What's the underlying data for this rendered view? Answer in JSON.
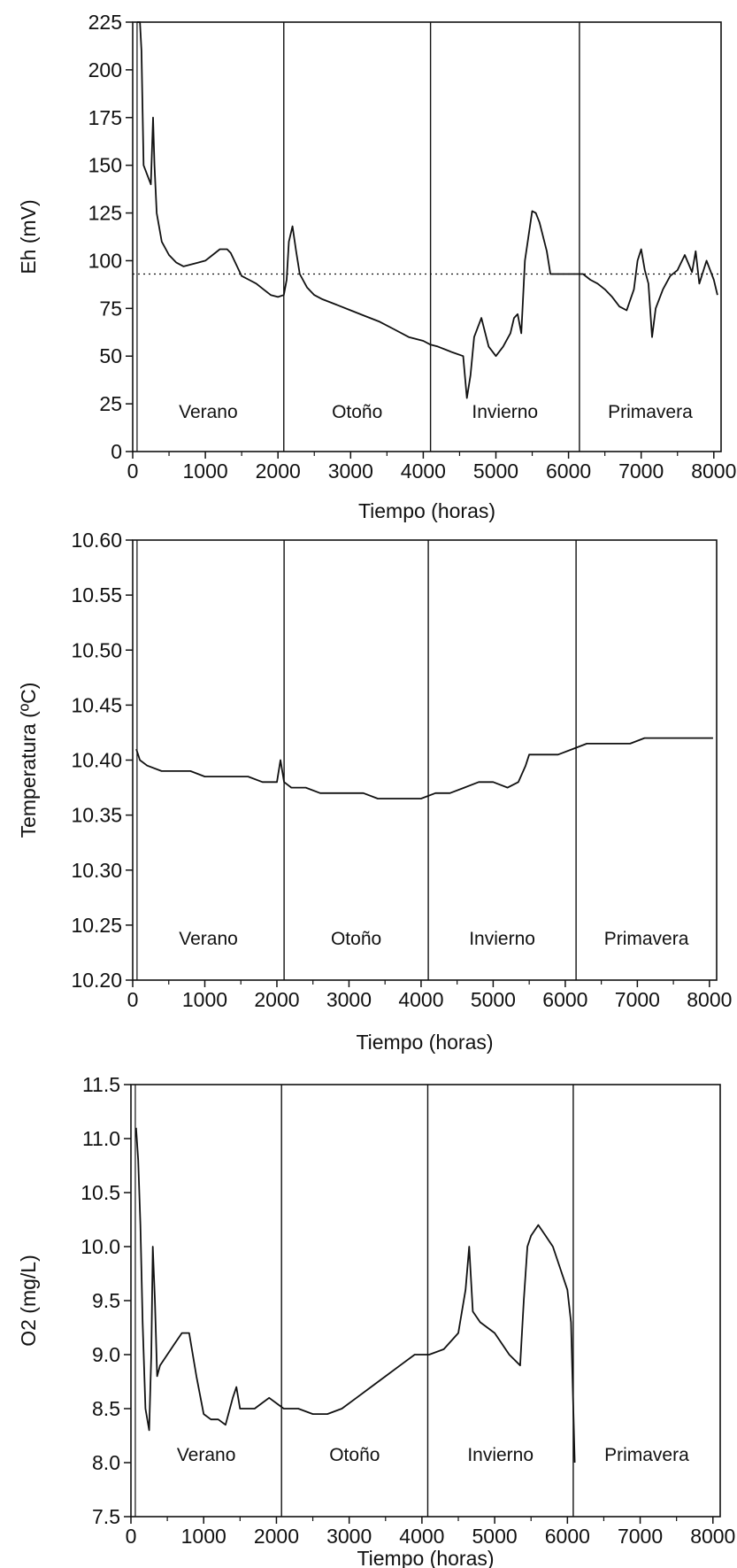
{
  "chart_data": [
    {
      "type": "line",
      "xlabel": "Tiempo (horas)",
      "ylabel": "Eh (mV)",
      "xlim": [
        0,
        8100
      ],
      "ylim": [
        0,
        225
      ],
      "xticks": [
        "0",
        "1000",
        "2000",
        "3000",
        "4000",
        "5000",
        "6000",
        "7000",
        "8000"
      ],
      "yticks": [
        "0",
        "25",
        "50",
        "75",
        "100",
        "125",
        "150",
        "175",
        "200",
        "225"
      ],
      "reference_line": {
        "y": 93,
        "style": "dotted"
      },
      "season_dividers": [
        2080,
        4100,
        6150
      ],
      "seasons": [
        "Verano",
        "Otoño",
        "Invierno",
        "Primavera"
      ],
      "series": [
        {
          "x": [
            60,
            80,
            100,
            120,
            150,
            200,
            250,
            280,
            300,
            330,
            400,
            500,
            600,
            700,
            800,
            900,
            1000,
            1100,
            1200,
            1300,
            1350,
            1400,
            1500,
            1600,
            1700,
            1800,
            1900,
            2000,
            2080,
            2120,
            2150,
            2200,
            2250,
            2300,
            2400,
            2500,
            2600,
            2800,
            3000,
            3200,
            3400,
            3600,
            3800,
            4000,
            4100,
            4200,
            4400,
            4550,
            4600,
            4650,
            4700,
            4800,
            4900,
            5000,
            5100,
            5200,
            5250,
            5300,
            5350,
            5400,
            5500,
            5550,
            5600,
            5700,
            5750,
            6150,
            6200,
            6300,
            6400,
            6500,
            6600,
            6700,
            6800,
            6900,
            6950,
            7000,
            7050,
            7100,
            7150,
            7200,
            7300,
            7400,
            7500,
            7600,
            7700,
            7750,
            7800,
            7900,
            8000,
            8050
          ],
          "values": [
            225,
            225,
            225,
            210,
            150,
            145,
            140,
            175,
            150,
            125,
            110,
            103,
            99,
            97,
            98,
            99,
            100,
            103,
            106,
            106,
            104,
            100,
            92,
            90,
            88,
            85,
            82,
            81,
            82,
            90,
            110,
            118,
            105,
            93,
            86,
            82,
            80,
            77,
            74,
            71,
            68,
            64,
            60,
            58,
            56,
            55,
            52,
            50,
            28,
            40,
            60,
            70,
            55,
            50,
            55,
            62,
            70,
            72,
            62,
            100,
            126,
            125,
            120,
            105,
            93,
            93,
            93,
            90,
            88,
            85,
            81,
            76,
            74,
            85,
            100,
            106,
            95,
            88,
            60,
            75,
            85,
            92,
            95,
            103,
            94,
            105,
            88,
            100,
            90,
            82
          ]
        }
      ]
    },
    {
      "type": "line",
      "xlabel": "Tiempo (horas)",
      "ylabel": "Temperatura (ºC)",
      "xlim": [
        0,
        8100
      ],
      "ylim": [
        10.2,
        10.6
      ],
      "xticks": [
        "0",
        "1000",
        "2000",
        "3000",
        "4000",
        "5000",
        "6000",
        "7000",
        "8000"
      ],
      "yticks": [
        "10.20",
        "10.25",
        "10.30",
        "10.35",
        "10.40",
        "10.45",
        "10.50",
        "10.55",
        "10.60"
      ],
      "season_dividers": [
        2100,
        4100,
        6150
      ],
      "seasons": [
        "Verano",
        "Otoño",
        "Invierno",
        "Primavera"
      ],
      "series": [
        {
          "x": [
            50,
            100,
            200,
            400,
            600,
            800,
            1000,
            1200,
            1400,
            1600,
            1800,
            2000,
            2050,
            2100,
            2200,
            2400,
            2600,
            2800,
            3000,
            3200,
            3400,
            3600,
            3800,
            4000,
            4200,
            4400,
            4600,
            4800,
            5000,
            5200,
            5350,
            5450,
            5500,
            5700,
            5900,
            6100,
            6300,
            6500,
            6700,
            6900,
            7100,
            7300,
            7500,
            7700,
            7900,
            8050
          ],
          "values": [
            10.41,
            10.4,
            10.395,
            10.39,
            10.39,
            10.39,
            10.385,
            10.385,
            10.385,
            10.385,
            10.38,
            10.38,
            10.4,
            10.38,
            10.375,
            10.375,
            10.37,
            10.37,
            10.37,
            10.37,
            10.365,
            10.365,
            10.365,
            10.365,
            10.37,
            10.37,
            10.375,
            10.38,
            10.38,
            10.375,
            10.38,
            10.395,
            10.405,
            10.405,
            10.405,
            10.41,
            10.415,
            10.415,
            10.415,
            10.415,
            10.42,
            10.42,
            10.42,
            10.42,
            10.42,
            10.42
          ]
        }
      ]
    },
    {
      "type": "line",
      "xlabel": "Tiempo (horas)",
      "ylabel": "O2 (mg/L)",
      "xlim": [
        0,
        8100
      ],
      "ylim": [
        7.5,
        11.5
      ],
      "xticks": [
        "0",
        "1000",
        "2000",
        "3000",
        "4000",
        "5000",
        "6000",
        "7000",
        "8000"
      ],
      "yticks": [
        "7.5",
        "8.0",
        "8.5",
        "9.0",
        "9.5",
        "10.0",
        "10.5",
        "11.0",
        "11.5"
      ],
      "season_dividers": [
        2070,
        4080,
        6080
      ],
      "seasons": [
        "Verano",
        "Otoño",
        "Invierno",
        "Primavera"
      ],
      "series": [
        {
          "x": [
            70,
            100,
            130,
            160,
            200,
            250,
            280,
            300,
            330,
            360,
            400,
            500,
            600,
            700,
            800,
            900,
            1000,
            1100,
            1200,
            1300,
            1400,
            1450,
            1500,
            1600,
            1700,
            1800,
            1900,
            2000,
            2100,
            2300,
            2500,
            2700,
            2900,
            3100,
            3300,
            3500,
            3700,
            3900,
            4100,
            4300,
            4500,
            4600,
            4650,
            4700,
            4800,
            5000,
            5200,
            5350,
            5400,
            5450,
            5500,
            5600,
            5700,
            5800,
            5900,
            6000,
            6050,
            6100
          ],
          "values": [
            11.1,
            10.8,
            10.2,
            9.3,
            8.5,
            8.3,
            9.0,
            10.0,
            9.5,
            8.8,
            8.9,
            9.0,
            9.1,
            9.2,
            9.2,
            8.8,
            8.45,
            8.4,
            8.4,
            8.35,
            8.6,
            8.7,
            8.5,
            8.5,
            8.5,
            8.55,
            8.6,
            8.55,
            8.5,
            8.5,
            8.45,
            8.45,
            8.5,
            8.6,
            8.7,
            8.8,
            8.9,
            9.0,
            9.0,
            9.05,
            9.2,
            9.6,
            10.0,
            9.4,
            9.3,
            9.2,
            9.0,
            8.9,
            9.5,
            10.0,
            10.1,
            10.2,
            10.1,
            10.0,
            9.8,
            9.6,
            9.3,
            8.0
          ]
        }
      ]
    }
  ]
}
